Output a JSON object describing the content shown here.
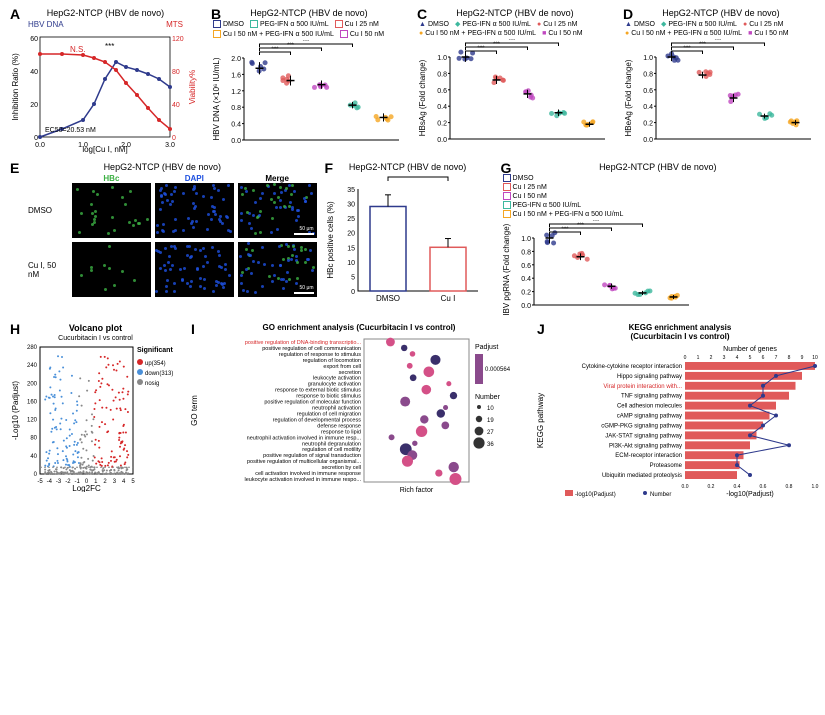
{
  "cell_line": "HepG2-NTCP (HBV de novo)",
  "panels": {
    "A": {
      "title": "HepG2-NTCP (HBV de novo)",
      "left_ylabel": "Inhibition Ratio (%)",
      "right_ylabel": "Viability%",
      "xlabel": "log[Cu I, nM]",
      "left_series_label": "HBV DNA",
      "right_series_label": "MTS",
      "ec50_text": "EC50=20.53 nM",
      "left_color": "#2e3a8c",
      "right_color": "#d62728",
      "x": [
        0,
        0.5,
        1.0,
        1.25,
        1.5,
        1.75,
        2.0,
        2.25,
        2.5,
        2.75,
        3.0
      ],
      "inhibition": [
        0,
        5,
        10,
        20,
        35,
        45,
        42,
        40,
        38,
        35,
        30
      ],
      "viability": [
        100,
        100,
        98,
        95,
        90,
        80,
        65,
        50,
        35,
        20,
        10
      ],
      "ylim_left": [
        0,
        60
      ],
      "ylim_right": [
        0,
        120
      ],
      "ns_label": "N.S.",
      "sig_labels": [
        "***",
        "***",
        "***",
        "**",
        "***",
        "***",
        "***"
      ]
    },
    "B": {
      "title": "HepG2-NTCP (HBV de novo)",
      "ylabel": "HBV DNA\n(×10⁶ IU/mL)",
      "groups": [
        "DMSO",
        "Cu I 25 nM",
        "Cu I 50 nM",
        "PEG-IFN α 500 IU/mL",
        "Cu I 50 nM + PEG-IFN α 500 IU/mL"
      ],
      "means": [
        1.75,
        1.45,
        1.35,
        0.85,
        0.55
      ],
      "sd": [
        0.15,
        0.12,
        0.1,
        0.08,
        0.1
      ],
      "colors": [
        "#2e3a8c",
        "#e05a5a",
        "#c048c0",
        "#3db89e",
        "#f5a623"
      ],
      "ylim": [
        0,
        2.0
      ],
      "sig": "***"
    },
    "C": {
      "title": "HepG2-NTCP (HBV de novo)",
      "ylabel": "HBsAg (Fold change)",
      "groups": [
        "DMSO",
        "Cu I 25 nM",
        "Cu I 50 nM",
        "PEG-IFN α 500 IU/mL",
        "Cu I 50 nM + PEG-IFN α 500 IU/mL"
      ],
      "means": [
        1.0,
        0.72,
        0.55,
        0.32,
        0.18
      ],
      "sd": [
        0.06,
        0.05,
        0.05,
        0.04,
        0.03
      ],
      "colors": [
        "#2e3a8c",
        "#e05a5a",
        "#c048c0",
        "#3db89e",
        "#f5a623"
      ],
      "ylim": [
        0,
        1.0
      ],
      "sig": "***"
    },
    "D": {
      "title": "HepG2-NTCP (HBV de novo)",
      "ylabel": "HBeAg (Fold change)",
      "groups": [
        "DMSO",
        "Cu I 25 nM",
        "Cu I 50 nM",
        "PEG-IFN α 500 IU/mL",
        "Cu I 50 nM + PEG-IFN α 500 IU/mL"
      ],
      "means": [
        1.0,
        0.78,
        0.5,
        0.28,
        0.2
      ],
      "sd": [
        0.05,
        0.04,
        0.05,
        0.03,
        0.03
      ],
      "colors": [
        "#2e3a8c",
        "#e05a5a",
        "#c048c0",
        "#3db89e",
        "#f5a623"
      ],
      "ylim": [
        0,
        1.0
      ],
      "sig": "***"
    },
    "E": {
      "title": "HepG2-NTCP (HBV de novo)",
      "col_headers": [
        "HBc",
        "DAPI",
        "Merge"
      ],
      "row_labels": [
        "DMSO",
        "Cu I, 50 nM"
      ],
      "hbc_color": "#3cb043",
      "dapi_color": "#1e50e0",
      "scale_text": "50 μm"
    },
    "F": {
      "title": "HepG2-NTCP (HBV de novo)",
      "ylabel": "HBc positive cells (%)",
      "groups": [
        "DMSO",
        "Cu I"
      ],
      "means": [
        29,
        15
      ],
      "sd": [
        4,
        3
      ],
      "colors": [
        "#2e3a8c",
        "#e05a5a"
      ],
      "ylim": [
        0,
        35
      ],
      "sig": "***"
    },
    "G": {
      "title": "HepG2-NTCP (HBV de novo)",
      "ylabel": "HBV pgRNA (Fold change)",
      "groups": [
        "DMSO",
        "Cu I 25 nM",
        "Cu I 50 nM",
        "PEG-IFN α 500 IU/mL",
        "Cu I 50 nM + PEG-IFN α 500 IU/mL"
      ],
      "means": [
        1.0,
        0.72,
        0.28,
        0.18,
        0.12
      ],
      "sd": [
        0.08,
        0.05,
        0.04,
        0.03,
        0.03
      ],
      "colors": [
        "#2e3a8c",
        "#e05a5a",
        "#c048c0",
        "#3db89e",
        "#f5a623"
      ],
      "ylim": [
        0,
        1.0
      ],
      "sig_labels": [
        "***",
        "***",
        "***",
        "**"
      ]
    },
    "H": {
      "title": "Volcano plot",
      "subtitle": "Cucurbitacin I vs control",
      "xlabel": "Log2FC",
      "ylabel": "-Log10 (Padjust)",
      "up_count": 354,
      "down_count": 313,
      "up_color": "#d62728",
      "down_color": "#4a90d9",
      "nosig_color": "#888888",
      "xlim": [
        -5,
        5
      ],
      "ylim": [
        0,
        280
      ],
      "legend_title": "Significant",
      "legend_items": [
        "up(354)",
        "down(313)",
        "nosig"
      ]
    },
    "I": {
      "title": "GO enrichment analysis (Cucurbitacin I vs control)",
      "xlabel": "Rich factor",
      "highlight_term": "positive regulation of DNA-binding transcriptio...",
      "highlight_color": "#d62728",
      "terms": [
        "positive regulation of DNA-binding transcriptio...",
        "positive regulation of cell communication",
        "regulation of response to stimulus",
        "regulation of locomotion",
        "export from cell",
        "secretion",
        "leukocyte activation",
        "granulocyte activation",
        "response to external biotic stimulus",
        "response to biotic stimulus",
        "positive regulation of molecular function",
        "neutrophil activation",
        "regulation of cell migration",
        "regulation of developmental process",
        "defense response",
        "response to lipid",
        "neutrophil activation involved in immune resp...",
        "neutrophil degranulation",
        "regulation of cell motility",
        "positive regulation of signal transduction",
        "positive regulation of multicellular organismal...",
        "secretion by cell",
        "cell activation involved in immune response",
        "leukocyte activation involved in immune respo..."
      ],
      "padjust_label": "Padjust",
      "padjust_min": 0.000564,
      "number_label": "Number",
      "number_sizes": [
        10,
        19,
        27,
        36
      ],
      "dot_color_scale": [
        "#3a2f6b",
        "#8a4a8c",
        "#d45087"
      ]
    },
    "J": {
      "title": "KEGG enrichment analysis\n(Cucurbitacin I vs control)",
      "xlabel_top": "Number of genes",
      "xlabel_bottom": "-log10(Padjust)",
      "ylabel": "KEGG pathway",
      "bar_color": "#e05a5a",
      "line_color": "#2e3a8c",
      "highlight_term": "Viral protein interaction with...",
      "highlight_color": "#d62728",
      "pathways": [
        {
          "name": "Cytokine-cytokine receptor interaction",
          "neglog": 1.0,
          "count": 10
        },
        {
          "name": "Hippo signaling pathway",
          "neglog": 0.9,
          "count": 7
        },
        {
          "name": "Viral protein interaction with...",
          "neglog": 0.85,
          "count": 6
        },
        {
          "name": "TNF signaling pathway",
          "neglog": 0.8,
          "count": 6
        },
        {
          "name": "Cell adhesion molecules",
          "neglog": 0.7,
          "count": 5
        },
        {
          "name": "cAMP signaling pathway",
          "neglog": 0.65,
          "count": 7
        },
        {
          "name": "cGMP-PKG signaling pathway",
          "neglog": 0.6,
          "count": 6
        },
        {
          "name": "JAK-STAT signaling pathway",
          "neglog": 0.55,
          "count": 5
        },
        {
          "name": "PI3K-Akt signaling pathway",
          "neglog": 0.5,
          "count": 8
        },
        {
          "name": "ECM-receptor interaction",
          "neglog": 0.45,
          "count": 4
        },
        {
          "name": "Proteasome",
          "neglog": 0.42,
          "count": 4
        },
        {
          "name": "Ubiquitin mediated proteolysis",
          "neglog": 0.4,
          "count": 5
        }
      ],
      "xlim_neglog": [
        0,
        1.0
      ],
      "xlim_count": [
        0,
        10
      ],
      "legend_items": [
        "-log10(Padjust)",
        "Number"
      ]
    }
  }
}
